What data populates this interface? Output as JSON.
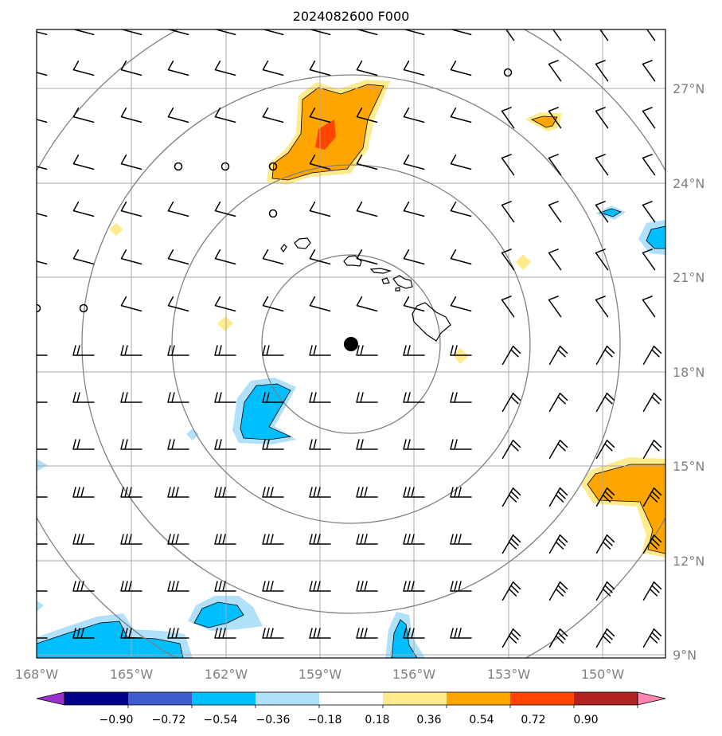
{
  "title": "2024082600 F000",
  "lat_labels": [
    "27°N",
    "24°N",
    "21°N",
    "18°N",
    "15°N",
    "12°N",
    "9°N"
  ],
  "lon_labels": [
    "168°W",
    "165°W",
    "162°W",
    "159°W",
    "156°W",
    "153°W",
    "150°W"
  ],
  "colorbar": {
    "ticks": [
      "−0.90",
      "−0.72",
      "−0.54",
      "−0.36",
      "−0.18",
      "0.18",
      "0.36",
      "0.54",
      "0.72",
      "0.90"
    ],
    "colors": [
      "#9932cc",
      "#00008b",
      "#3c5ccf",
      "#00bfff",
      "#b0e0fa",
      "#ffffff",
      "#ffeb8c",
      "#ffa500",
      "#ff4500",
      "#b22222",
      "#ff85b0"
    ]
  },
  "colors": {
    "grid": "#aaaaaa",
    "range_rings": "#808080",
    "coast": "#000000",
    "barbs": "#000000"
  }
}
